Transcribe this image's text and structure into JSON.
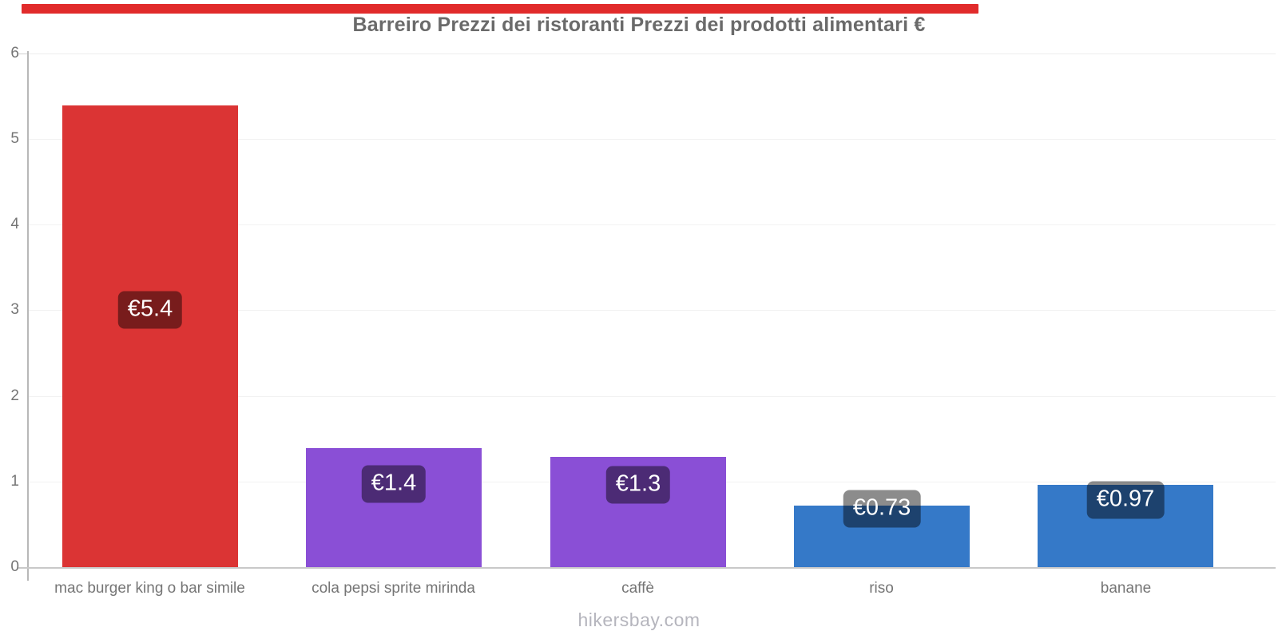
{
  "page": {
    "title": "Barreiro Prezzi dei ristoranti Prezzi dei prodotti alimentari €",
    "watermark": "hikersbay.com"
  },
  "top_bar": {
    "color": "#e12b2b"
  },
  "chart_data": {
    "type": "bar",
    "title": "Barreiro Prezzi dei ristoranti Prezzi dei prodotti alimentari €",
    "categories": [
      "mac burger king o bar simile",
      "cola pepsi sprite mirinda",
      "caffè",
      "riso",
      "banane"
    ],
    "values": [
      5.4,
      1.4,
      1.3,
      0.73,
      0.97
    ],
    "value_labels": [
      "€5.4",
      "€1.4",
      "€1.3",
      "€0.73",
      "€0.97"
    ],
    "bar_colors": [
      "#db3434",
      "#8a4fd6",
      "#8a4fd6",
      "#3579c8",
      "#3579c8"
    ],
    "currency_symbol": "€",
    "xlabel": "",
    "ylabel": "",
    "ylim": [
      0,
      6
    ],
    "yticks": [
      0,
      1,
      2,
      3,
      4,
      5,
      6
    ],
    "grid": "horizontal-light",
    "legend": "none",
    "value_label_style": {
      "background": "rgba(0,0,0,0.45)",
      "text_color": "#ffffff"
    }
  },
  "colors": {
    "background": "#ffffff",
    "y_axis_line": "#b8b8b8",
    "x_axis_line": "#c9c9c9",
    "gridline": "#f2f2f2",
    "tick_text": "#757575",
    "title_text": "#6a6a6a",
    "watermark_text": "#b5b5bd"
  }
}
